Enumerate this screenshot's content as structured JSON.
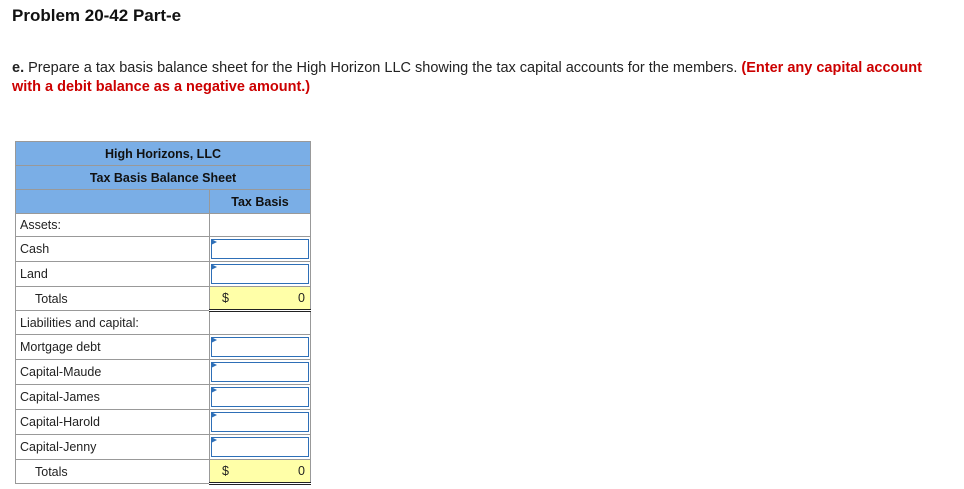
{
  "title": "Problem 20-42 Part-e",
  "instructions": {
    "lead": "e.",
    "text": " Prepare a tax basis balance sheet for the High Horizon LLC showing the tax capital accounts for the members. ",
    "emphasis": "(Enter any capital account with a debit balance as a negative amount.)"
  },
  "sheet": {
    "company": "High Horizons, LLC",
    "statement": "Tax Basis Balance Sheet",
    "column": "Tax Basis",
    "rows": [
      {
        "label": "Assets:",
        "type": "heading"
      },
      {
        "label": "Cash",
        "type": "input",
        "value": ""
      },
      {
        "label": "Land",
        "type": "input",
        "value": ""
      },
      {
        "label": "Totals",
        "type": "total",
        "currency": "$",
        "value": "0"
      },
      {
        "label": "Liabilities and capital:",
        "type": "heading"
      },
      {
        "label": "Mortgage debt",
        "type": "input",
        "value": ""
      },
      {
        "label": "Capital-Maude",
        "type": "input",
        "value": ""
      },
      {
        "label": "Capital-James",
        "type": "input",
        "value": ""
      },
      {
        "label": "Capital-Harold",
        "type": "input",
        "value": ""
      },
      {
        "label": "Capital-Jenny",
        "type": "input",
        "value": ""
      },
      {
        "label": "Totals",
        "type": "total",
        "currency": "$",
        "value": "0"
      }
    ]
  }
}
